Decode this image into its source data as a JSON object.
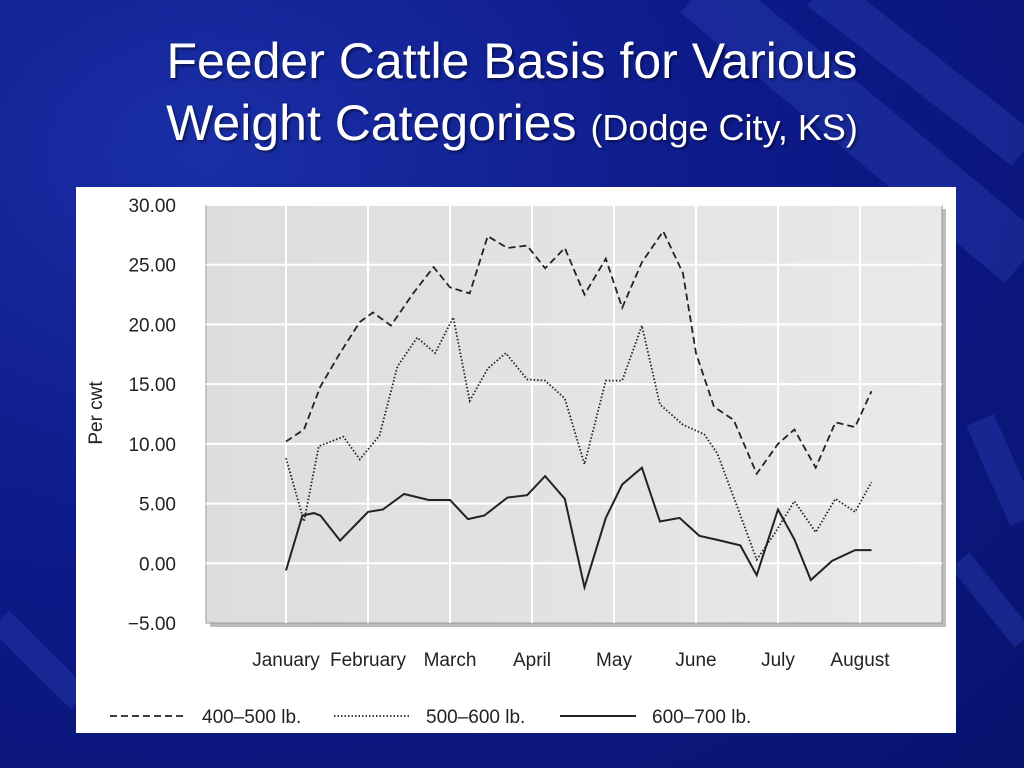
{
  "slide": {
    "title_line1": "Feeder Cattle Basis for Various",
    "title_line2": "Weight Categories",
    "title_suffix": "(Dodge City, KS)"
  },
  "colors": {
    "background": "#0d1a8a",
    "plot_area": "#e3e3e3",
    "series_line": "#222222"
  },
  "chart_data": {
    "type": "line",
    "title": "",
    "xlabel": "",
    "ylabel": "Per cwt",
    "ylim": [
      -5,
      30
    ],
    "yticks": [
      -5,
      0,
      5,
      10,
      15,
      20,
      25,
      30
    ],
    "ytick_labels": [
      "−5.00",
      "0.00",
      "5.00",
      "10.00",
      "15.00",
      "20.00",
      "25.00",
      "30.00"
    ],
    "months": [
      "January",
      "February",
      "March",
      "April",
      "May",
      "June",
      "July",
      "August"
    ],
    "grid": true,
    "legend_position": "bottom",
    "series": [
      {
        "name": "400–500 lb.",
        "style": "dashed",
        "points": [
          [
            0.0,
            10.2
          ],
          [
            0.22,
            11.2
          ],
          [
            0.42,
            14.8
          ],
          [
            0.65,
            17.5
          ],
          [
            0.9,
            20.2
          ],
          [
            1.06,
            21.0
          ],
          [
            1.28,
            19.9
          ],
          [
            1.55,
            22.6
          ],
          [
            1.8,
            24.8
          ],
          [
            2.0,
            23.1
          ],
          [
            2.24,
            22.6
          ],
          [
            2.46,
            27.4
          ],
          [
            2.7,
            26.4
          ],
          [
            2.94,
            26.6
          ],
          [
            3.16,
            24.7
          ],
          [
            3.4,
            26.4
          ],
          [
            3.64,
            22.5
          ],
          [
            3.9,
            25.5
          ],
          [
            4.1,
            21.4
          ],
          [
            4.34,
            25.2
          ],
          [
            4.6,
            27.8
          ],
          [
            4.84,
            24.3
          ],
          [
            5.0,
            17.6
          ],
          [
            5.22,
            13.1
          ],
          [
            5.46,
            12.0
          ],
          [
            5.74,
            7.5
          ],
          [
            6.0,
            10.0
          ],
          [
            6.2,
            11.2
          ],
          [
            6.46,
            8.0
          ],
          [
            6.7,
            11.8
          ],
          [
            6.94,
            11.4
          ],
          [
            7.14,
            14.4
          ]
        ]
      },
      {
        "name": "500–600 lb.",
        "style": "dotted",
        "points": [
          [
            0.0,
            8.8
          ],
          [
            0.22,
            3.5
          ],
          [
            0.4,
            9.8
          ],
          [
            0.7,
            10.6
          ],
          [
            0.9,
            8.7
          ],
          [
            1.14,
            10.7
          ],
          [
            1.36,
            16.5
          ],
          [
            1.6,
            18.9
          ],
          [
            1.82,
            17.6
          ],
          [
            2.04,
            20.6
          ],
          [
            2.24,
            13.6
          ],
          [
            2.46,
            16.3
          ],
          [
            2.68,
            17.6
          ],
          [
            2.94,
            15.4
          ],
          [
            3.16,
            15.3
          ],
          [
            3.4,
            13.8
          ],
          [
            3.64,
            8.3
          ],
          [
            3.9,
            15.3
          ],
          [
            4.1,
            15.3
          ],
          [
            4.34,
            19.9
          ],
          [
            4.56,
            13.3
          ],
          [
            4.84,
            11.6
          ],
          [
            5.1,
            10.8
          ],
          [
            5.26,
            9.2
          ],
          [
            5.5,
            4.8
          ],
          [
            5.74,
            0.3
          ],
          [
            5.96,
            2.5
          ],
          [
            6.2,
            5.2
          ],
          [
            6.46,
            2.6
          ],
          [
            6.7,
            5.4
          ],
          [
            6.94,
            4.3
          ],
          [
            7.14,
            6.8
          ]
        ]
      },
      {
        "name": "600–700 lb.",
        "style": "solid",
        "points": [
          [
            0.0,
            -0.6
          ],
          [
            0.2,
            4.0
          ],
          [
            0.34,
            4.2
          ],
          [
            0.42,
            4.0
          ],
          [
            0.66,
            1.9
          ],
          [
            1.0,
            4.3
          ],
          [
            1.18,
            4.5
          ],
          [
            1.44,
            5.8
          ],
          [
            1.74,
            5.3
          ],
          [
            2.0,
            5.3
          ],
          [
            2.22,
            3.7
          ],
          [
            2.42,
            4.0
          ],
          [
            2.7,
            5.5
          ],
          [
            2.94,
            5.7
          ],
          [
            3.16,
            7.3
          ],
          [
            3.4,
            5.4
          ],
          [
            3.64,
            -2.0
          ],
          [
            3.9,
            3.8
          ],
          [
            4.1,
            6.6
          ],
          [
            4.34,
            8.0
          ],
          [
            4.56,
            3.5
          ],
          [
            4.8,
            3.8
          ],
          [
            5.04,
            2.3
          ],
          [
            5.3,
            1.9
          ],
          [
            5.54,
            1.5
          ],
          [
            5.74,
            -1.0
          ],
          [
            6.0,
            4.5
          ],
          [
            6.2,
            2.0
          ],
          [
            6.4,
            -1.4
          ],
          [
            6.66,
            0.2
          ],
          [
            6.94,
            1.1
          ],
          [
            7.14,
            1.1
          ]
        ]
      }
    ]
  }
}
